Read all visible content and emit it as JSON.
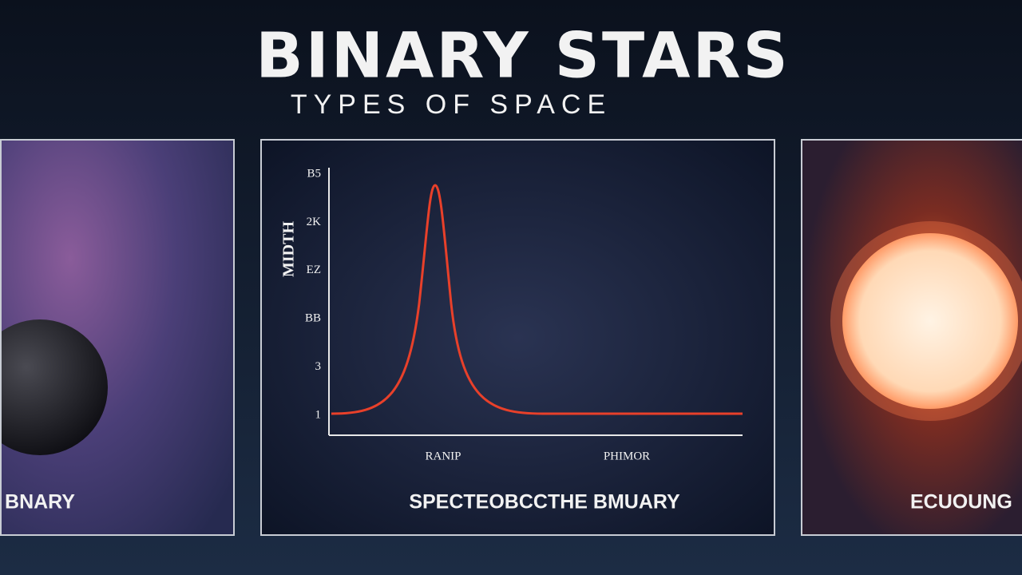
{
  "header": {
    "title": "BINARY STARS",
    "subtitle": "TYPES   OF SPACE"
  },
  "panels": [
    {
      "label": "BNARY"
    },
    {
      "label": "SPECTEOBCCTHE BMUARY",
      "chart": {
        "y_axis_label": "MIDTH",
        "y_tick_labels": [
          "B5",
          "2K",
          "EZ",
          "BB",
          "3",
          "1"
        ],
        "x_tick_labels": [
          "RANIP",
          "PHIMOR"
        ]
      }
    },
    {
      "label": "ECUOUNG"
    }
  ]
}
